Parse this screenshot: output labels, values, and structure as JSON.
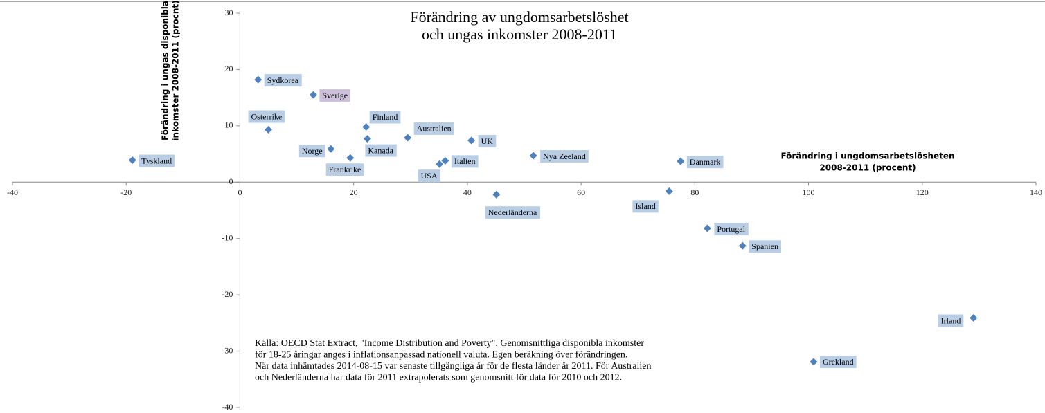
{
  "chart_data": {
    "type": "scatter",
    "title": [
      "Förändring av ungdomsarbetslöshet",
      "och ungas inkomster 2008-2011"
    ],
    "y_label": [
      "Förändring i ungas disponibla",
      "inkomster 2008-2011 (procnt)"
    ],
    "x_label": [
      "Förändring i ungdomsarbetslösheten",
      "2008-2011 (procent)"
    ],
    "note": [
      "Källa: OECD Stat Extract, \"Income Distribution and Poverty\". Genomsnittliga disponibla inkomster",
      "för 18-25 åringar anges i inflationsanpassad nationell valuta. Egen beräkning över förändringen.",
      "När data inhämtades 2014-08-15 var senaste tillgängliga år för de flesta länder år 2011. För Australien",
      "och Nederländerna har data för 2011 extrapolerats som genomsnitt för data för 2010 och 2012."
    ],
    "labels": [
      "Tyskland",
      "Sydkorea",
      "Sverige",
      "Österrike",
      "Finland",
      "Australien",
      "Norge",
      "Kanada",
      "Frankrike",
      "UK",
      "USA",
      "Italien",
      "Nya Zeeland",
      "Nederländerna",
      "Danmark",
      "Island",
      "Portugal",
      "Spanien",
      "Irland",
      "Grekland"
    ],
    "x": [
      -18.9,
      3.2,
      12.9,
      5.0,
      22.2,
      29.5,
      16.0,
      22.4,
      19.4,
      40.7,
      35.1,
      36.1,
      51.6,
      45.1,
      77.5,
      75.5,
      82.2,
      88.4,
      129.0,
      100.9
    ],
    "y": [
      3.9,
      18.2,
      15.5,
      9.3,
      9.8,
      7.9,
      5.9,
      7.7,
      4.3,
      7.4,
      3.2,
      3.8,
      4.7,
      -2.2,
      3.7,
      -1.6,
      -8.2,
      -11.3,
      -24.1,
      -31.9
    ],
    "color": "#4f81bd",
    "label_colors": [
      "#b9cde5",
      "#b9cde5",
      "#ccc0da",
      "#b9cde5",
      "#b9cde5",
      "#b9cde5",
      "#b9cde5",
      "#b9cde5",
      "#b9cde5",
      "#b9cde5",
      "#b9cde5",
      "#b9cde5",
      "#b9cde5",
      "#b9cde5",
      "#b9cde5",
      "#b9cde5",
      "#b9cde5",
      "#b9cde5",
      "#b9cde5",
      "#b9cde5"
    ],
    "xlim": [
      -40,
      140
    ],
    "ylim": [
      -40,
      30
    ],
    "xticks": [
      -40,
      -20,
      0,
      20,
      40,
      60,
      80,
      100,
      120,
      140
    ],
    "yticks": [
      -40,
      -30,
      -20,
      -10,
      0,
      10,
      20,
      30
    ]
  }
}
